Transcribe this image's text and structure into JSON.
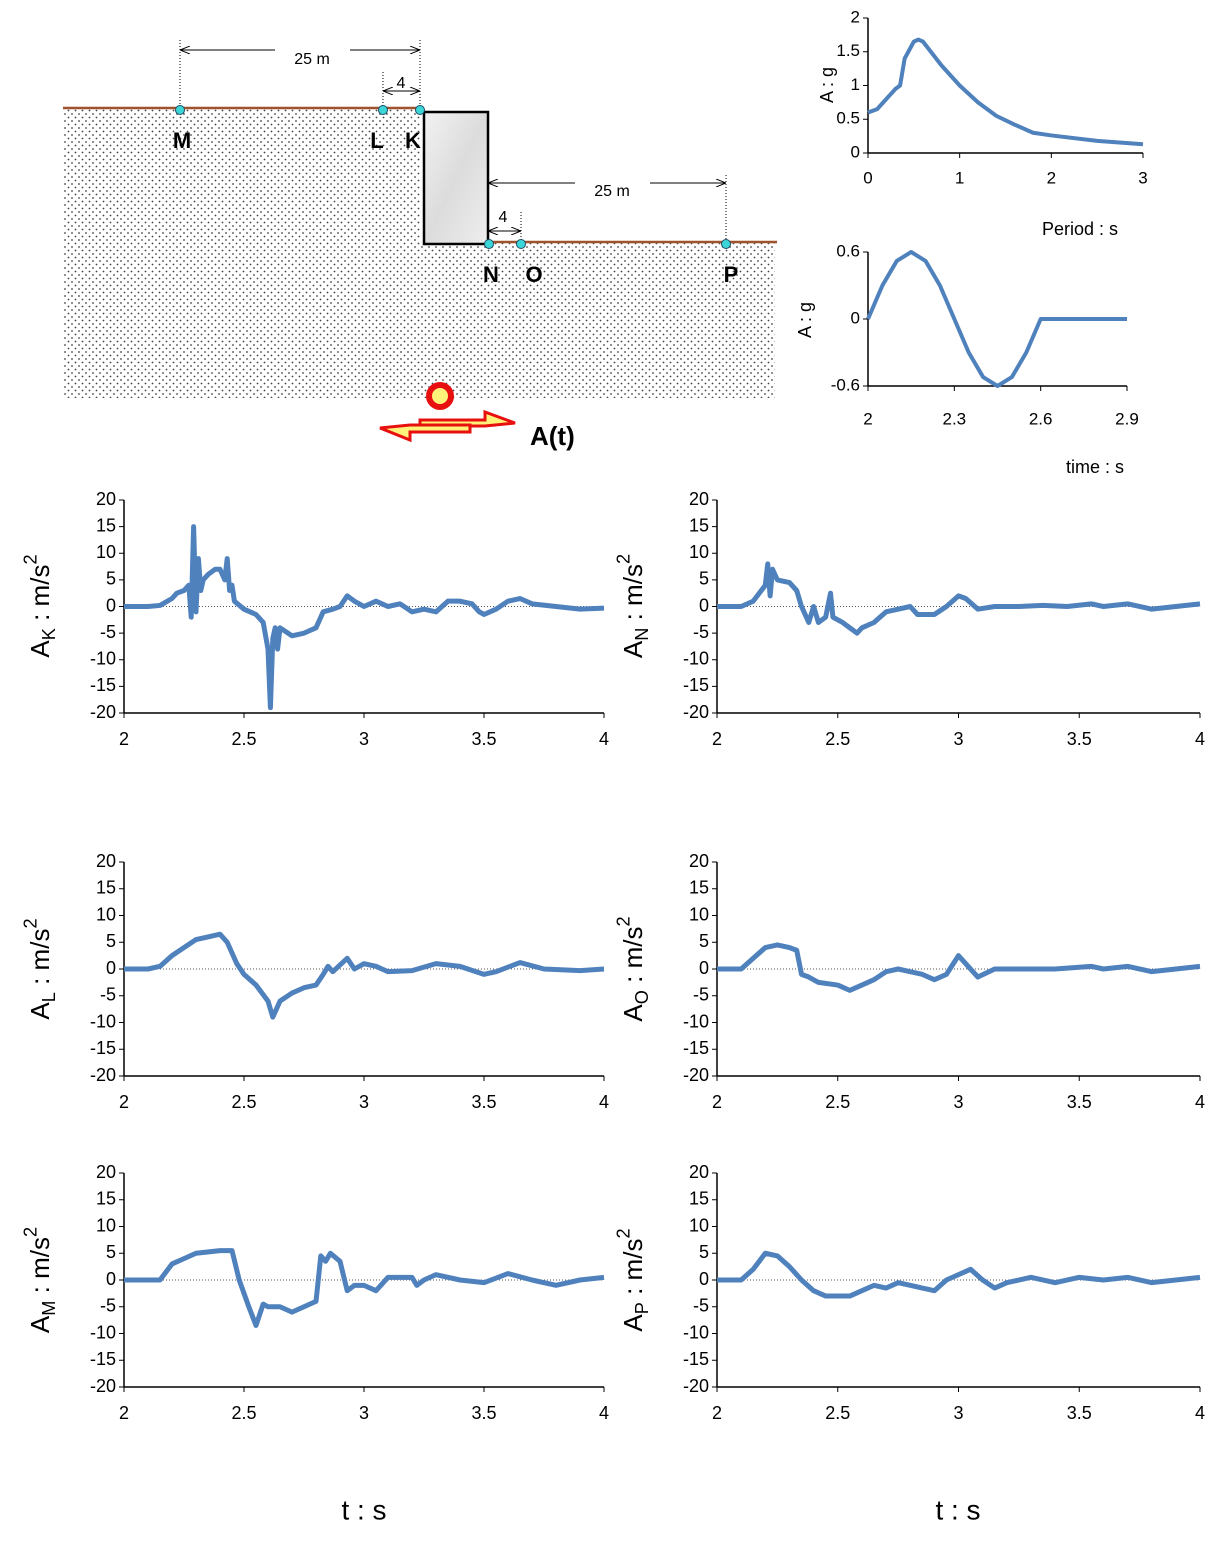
{
  "diagram": {
    "dimensions": [
      "25 m",
      "4",
      "25 m",
      "4"
    ],
    "points": [
      "M",
      "L",
      "K",
      "N",
      "O",
      "P"
    ],
    "input_label": "A(t)"
  },
  "chart_data": [
    {
      "type": "line",
      "x_label": "Period : s",
      "y_label": "A : g",
      "color": "#4f81bd",
      "x": [
        0,
        0.1,
        0.2,
        0.3,
        0.35,
        0.4,
        0.5,
        0.55,
        0.6,
        0.8,
        1.0,
        1.2,
        1.4,
        1.6,
        1.8,
        2.0,
        2.5,
        3.0
      ],
      "values": [
        0.6,
        0.65,
        0.8,
        0.95,
        1.0,
        1.4,
        1.65,
        1.68,
        1.65,
        1.3,
        1.0,
        0.75,
        0.55,
        0.42,
        0.3,
        0.26,
        0.18,
        0.13
      ],
      "xlim": [
        0,
        3
      ],
      "xticks": [
        0,
        1,
        2,
        3
      ],
      "ylim": [
        0,
        2
      ],
      "yticks": [
        0,
        0.5,
        1,
        1.5,
        2
      ]
    },
    {
      "type": "line",
      "x_label": "time : s",
      "y_label": "A : g",
      "color": "#4f81bd",
      "x": [
        2,
        2.05,
        2.1,
        2.15,
        2.2,
        2.25,
        2.3,
        2.35,
        2.4,
        2.45,
        2.5,
        2.55,
        2.6,
        2.9
      ],
      "values": [
        0,
        0.3,
        0.52,
        0.6,
        0.52,
        0.3,
        0,
        -0.3,
        -0.52,
        -0.6,
        -0.52,
        -0.3,
        0,
        0
      ],
      "xlim": [
        2,
        2.9
      ],
      "xticks": [
        2,
        2.3,
        2.6,
        2.9
      ],
      "ylim": [
        -0.6,
        0.6
      ],
      "yticks": [
        -0.6,
        0,
        0.6
      ]
    },
    {
      "type": "line",
      "y_label": "A",
      "y_label_sub": "K",
      "y_label_unit": " : m/s",
      "y_label_sup": "2",
      "color": "#4f81bd",
      "x": [
        2.0,
        2.1,
        2.15,
        2.2,
        2.22,
        2.25,
        2.27,
        2.28,
        2.29,
        2.3,
        2.31,
        2.32,
        2.33,
        2.35,
        2.38,
        2.4,
        2.42,
        2.43,
        2.44,
        2.45,
        2.46,
        2.5,
        2.55,
        2.58,
        2.6,
        2.61,
        2.62,
        2.63,
        2.64,
        2.65,
        2.7,
        2.75,
        2.8,
        2.83,
        2.87,
        2.9,
        2.93,
        2.96,
        3.0,
        3.05,
        3.1,
        3.15,
        3.2,
        3.25,
        3.3,
        3.35,
        3.4,
        3.45,
        3.48,
        3.5,
        3.55,
        3.6,
        3.65,
        3.7,
        3.8,
        3.9,
        4.0
      ],
      "values": [
        0,
        0,
        0.2,
        1.5,
        2.5,
        3,
        4,
        -2,
        15,
        -1,
        9,
        3,
        5,
        6,
        7,
        7,
        5,
        9,
        3,
        4,
        1,
        -0.5,
        -1.5,
        -3,
        -8,
        -19,
        -6,
        -4,
        -8,
        -4,
        -5.5,
        -5,
        -4,
        -1,
        -0.5,
        0,
        2,
        1,
        0,
        1,
        0,
        0.5,
        -1,
        -0.5,
        -1,
        1,
        1,
        0.5,
        -1,
        -1.5,
        -0.5,
        1,
        1.5,
        0.5,
        0,
        -0.5,
        -0.3
      ],
      "xlim": [
        2,
        4
      ],
      "xticks": [
        2,
        2.5,
        3,
        3.5,
        4
      ],
      "ylim": [
        -20,
        20
      ],
      "yticks": [
        -20,
        -15,
        -10,
        -5,
        0,
        5,
        10,
        15,
        20
      ]
    },
    {
      "type": "line",
      "y_label": "A",
      "y_label_sub": "N",
      "y_label_unit": " : m/s",
      "y_label_sup": "2",
      "color": "#4f81bd",
      "x": [
        2.0,
        2.1,
        2.15,
        2.2,
        2.21,
        2.22,
        2.23,
        2.25,
        2.3,
        2.33,
        2.35,
        2.37,
        2.38,
        2.4,
        2.42,
        2.45,
        2.47,
        2.48,
        2.52,
        2.55,
        2.58,
        2.6,
        2.65,
        2.7,
        2.75,
        2.8,
        2.83,
        2.87,
        2.9,
        2.95,
        3.0,
        3.03,
        3.08,
        3.15,
        3.25,
        3.35,
        3.45,
        3.55,
        3.6,
        3.7,
        3.8,
        3.9,
        4.0
      ],
      "values": [
        0,
        0,
        1,
        4,
        8,
        2,
        7,
        5,
        4.5,
        3,
        0,
        -2,
        -3,
        0,
        -3,
        -2,
        2.5,
        -2,
        -3,
        -4,
        -5,
        -4,
        -3,
        -1,
        -0.5,
        0,
        -1.5,
        -1.5,
        -1.5,
        0,
        2,
        1.5,
        -0.5,
        0,
        0,
        0.2,
        0,
        0.5,
        0,
        0.5,
        -0.5,
        0,
        0.5
      ],
      "xlim": [
        2,
        4
      ],
      "xticks": [
        2,
        2.5,
        3,
        3.5,
        4
      ],
      "ylim": [
        -20,
        20
      ],
      "yticks": [
        -20,
        -15,
        -10,
        -5,
        0,
        5,
        10,
        15,
        20
      ]
    },
    {
      "type": "line",
      "y_label": "A",
      "y_label_sub": "L",
      "y_label_unit": " : m/s",
      "y_label_sup": "2",
      "color": "#4f81bd",
      "x": [
        2.0,
        2.1,
        2.15,
        2.2,
        2.25,
        2.3,
        2.35,
        2.4,
        2.43,
        2.47,
        2.5,
        2.55,
        2.6,
        2.62,
        2.65,
        2.7,
        2.75,
        2.8,
        2.83,
        2.85,
        2.87,
        2.93,
        2.96,
        3.0,
        3.05,
        3.1,
        3.2,
        3.3,
        3.4,
        3.5,
        3.55,
        3.65,
        3.75,
        3.9,
        4.0
      ],
      "values": [
        0,
        0,
        0.5,
        2.5,
        4,
        5.5,
        6,
        6.5,
        5,
        1,
        -1,
        -3,
        -6,
        -9,
        -6,
        -4.5,
        -3.5,
        -3,
        -1,
        0.5,
        -0.5,
        2,
        0,
        1,
        0.5,
        -0.5,
        -0.3,
        1,
        0.5,
        -1,
        -0.5,
        1.2,
        0,
        -0.3,
        0
      ],
      "xlim": [
        2,
        4
      ],
      "xticks": [
        2,
        2.5,
        3,
        3.5,
        4
      ],
      "ylim": [
        -20,
        20
      ],
      "yticks": [
        -20,
        -15,
        -10,
        -5,
        0,
        5,
        10,
        15,
        20
      ]
    },
    {
      "type": "line",
      "y_label": "A",
      "y_label_sub": "O",
      "y_label_unit": " : m/s",
      "y_label_sup": "2",
      "color": "#4f81bd",
      "x": [
        2.0,
        2.1,
        2.15,
        2.2,
        2.25,
        2.3,
        2.33,
        2.35,
        2.38,
        2.42,
        2.5,
        2.55,
        2.6,
        2.65,
        2.7,
        2.75,
        2.8,
        2.85,
        2.9,
        2.95,
        3.0,
        3.03,
        3.08,
        3.15,
        3.3,
        3.4,
        3.55,
        3.6,
        3.7,
        3.8,
        3.9,
        4.0
      ],
      "values": [
        0,
        0,
        2,
        4,
        4.5,
        4,
        3.5,
        -1,
        -1.5,
        -2.5,
        -3,
        -4,
        -3,
        -2,
        -0.5,
        0,
        -0.5,
        -1,
        -2,
        -1,
        2.5,
        1,
        -1.5,
        0,
        0,
        0,
        0.5,
        0,
        0.5,
        -0.5,
        0,
        0.5
      ],
      "xlim": [
        2,
        4
      ],
      "xticks": [
        2,
        2.5,
        3,
        3.5,
        4
      ],
      "ylim": [
        -20,
        20
      ],
      "yticks": [
        -20,
        -15,
        -10,
        -5,
        0,
        5,
        10,
        15,
        20
      ]
    },
    {
      "type": "line",
      "x_label": "t : s",
      "y_label": "A",
      "y_label_sub": "M",
      "y_label_unit": " : m/s",
      "y_label_sup": "2",
      "color": "#4f81bd",
      "x": [
        2.0,
        2.15,
        2.2,
        2.25,
        2.3,
        2.4,
        2.45,
        2.48,
        2.52,
        2.55,
        2.58,
        2.6,
        2.65,
        2.7,
        2.75,
        2.8,
        2.82,
        2.84,
        2.86,
        2.9,
        2.93,
        2.96,
        3.0,
        3.05,
        3.1,
        3.15,
        3.2,
        3.22,
        3.25,
        3.3,
        3.4,
        3.5,
        3.6,
        3.7,
        3.8,
        3.9,
        4.0
      ],
      "values": [
        0,
        0,
        3,
        4,
        5,
        5.5,
        5.5,
        0,
        -5,
        -8.5,
        -4.5,
        -5,
        -5,
        -6,
        -5,
        -4,
        4.5,
        3.5,
        5,
        3.5,
        -2,
        -1,
        -1,
        -2,
        0.5,
        0.5,
        0.5,
        -1,
        0,
        1,
        0,
        -0.5,
        1.2,
        0,
        -1,
        0,
        0.5
      ],
      "xlim": [
        2,
        4
      ],
      "xticks": [
        2,
        2.5,
        3,
        3.5,
        4
      ],
      "ylim": [
        -20,
        20
      ],
      "yticks": [
        -20,
        -15,
        -10,
        -5,
        0,
        5,
        10,
        15,
        20
      ]
    },
    {
      "type": "line",
      "x_label": "t : s",
      "y_label": "A",
      "y_label_sub": "P",
      "y_label_unit": " : m/s",
      "y_label_sup": "2",
      "color": "#4f81bd",
      "x": [
        2.0,
        2.1,
        2.15,
        2.2,
        2.25,
        2.3,
        2.35,
        2.4,
        2.45,
        2.5,
        2.55,
        2.6,
        2.65,
        2.7,
        2.75,
        2.8,
        2.85,
        2.9,
        2.95,
        3.0,
        3.05,
        3.1,
        3.15,
        3.2,
        3.3,
        3.4,
        3.5,
        3.6,
        3.7,
        3.8,
        3.9,
        4.0
      ],
      "values": [
        0,
        0,
        2,
        5,
        4.5,
        2.5,
        0,
        -2,
        -3,
        -3,
        -3,
        -2,
        -1,
        -1.5,
        -0.5,
        -1,
        -1.5,
        -2,
        0,
        1,
        2,
        0,
        -1.5,
        -0.5,
        0.5,
        -0.5,
        0.5,
        0,
        0.5,
        -0.5,
        0,
        0.5
      ],
      "xlim": [
        2,
        4
      ],
      "xticks": [
        2,
        2.5,
        3,
        3.5,
        4
      ],
      "ylim": [
        -20,
        20
      ],
      "yticks": [
        -20,
        -15,
        -10,
        -5,
        0,
        5,
        10,
        15,
        20
      ]
    }
  ]
}
